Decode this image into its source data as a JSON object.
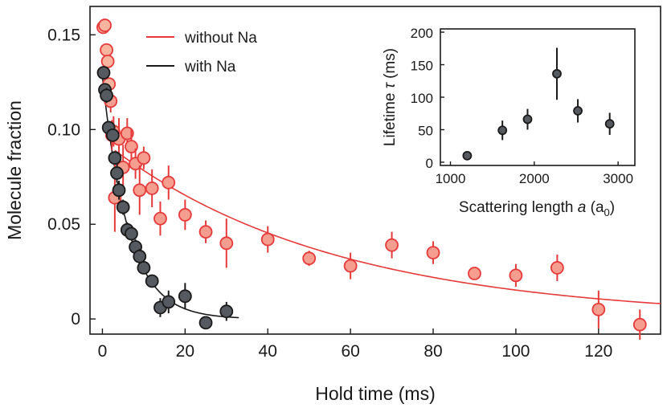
{
  "chart_data": [
    {
      "type": "scatter",
      "title": "",
      "xlabel": "Hold time (ms)",
      "ylabel": "Molecule fraction",
      "xlim": [
        -3,
        135
      ],
      "ylim": [
        -0.008,
        0.165
      ],
      "xticks": [
        0,
        20,
        40,
        60,
        80,
        100,
        120
      ],
      "xtick_labels": [
        "0",
        "20",
        "40",
        "60",
        "80",
        "100",
        "120"
      ],
      "yticks": [
        0,
        0.05,
        0.1,
        0.15
      ],
      "ytick_labels": [
        "0",
        "0.05",
        "0.10",
        "0.15"
      ],
      "legend": {
        "position": "top-left",
        "entries": [
          {
            "label": "without Na",
            "color": "#e63a3a"
          },
          {
            "label": "with Na",
            "color": "#1a1a1a"
          }
        ]
      },
      "series": [
        {
          "name": "without Na",
          "color": "#e63a3a",
          "fill": "#f59d8e",
          "early_fill": "#f7b5a0",
          "points": [
            {
              "x": 0.2,
              "y": 0.154,
              "err": 0
            },
            {
              "x": 0.6,
              "y": 0.155,
              "err": 0
            },
            {
              "x": 1.0,
              "y": 0.142,
              "err": 0
            },
            {
              "x": 1.3,
              "y": 0.136,
              "err": 0
            },
            {
              "x": 1.6,
              "y": 0.124,
              "err": 0
            },
            {
              "x": 2.0,
              "y": 0.115,
              "err": 0.006
            },
            {
              "x": 2.3,
              "y": 0.097,
              "err": 0.008
            },
            {
              "x": 2.7,
              "y": 0.099,
              "err": 0.008
            },
            {
              "x": 3.0,
              "y": 0.064,
              "err": 0.018
            },
            {
              "x": 4.0,
              "y": 0.095,
              "err": 0.011
            },
            {
              "x": 5.0,
              "y": 0.08,
              "err": 0.012
            },
            {
              "x": 6.0,
              "y": 0.098,
              "err": 0.008
            },
            {
              "x": 7.0,
              "y": 0.091,
              "err": 0.009
            },
            {
              "x": 8.0,
              "y": 0.082,
              "err": 0.008
            },
            {
              "x": 9.0,
              "y": 0.068,
              "err": 0.013
            },
            {
              "x": 10.0,
              "y": 0.085,
              "err": 0.006
            },
            {
              "x": 12.0,
              "y": 0.069,
              "err": 0.01
            },
            {
              "x": 14.0,
              "y": 0.053,
              "err": 0.009
            },
            {
              "x": 16.0,
              "y": 0.072,
              "err": 0.009
            },
            {
              "x": 20.0,
              "y": 0.055,
              "err": 0.008
            },
            {
              "x": 25.0,
              "y": 0.046,
              "err": 0.006
            },
            {
              "x": 30.0,
              "y": 0.04,
              "err": 0.013
            },
            {
              "x": 40.0,
              "y": 0.042,
              "err": 0.007
            },
            {
              "x": 50.0,
              "y": 0.032,
              "err": 0.004
            },
            {
              "x": 60.0,
              "y": 0.028,
              "err": 0.007
            },
            {
              "x": 70.0,
              "y": 0.039,
              "err": 0.007
            },
            {
              "x": 80.0,
              "y": 0.035,
              "err": 0.006
            },
            {
              "x": 90.0,
              "y": 0.024,
              "err": 0.003
            },
            {
              "x": 100.0,
              "y": 0.023,
              "err": 0.006
            },
            {
              "x": 110.0,
              "y": 0.027,
              "err": 0.007
            },
            {
              "x": 120.0,
              "y": 0.005,
              "err": 0.01
            },
            {
              "x": 130.0,
              "y": -0.003,
              "err": 0.008
            }
          ],
          "fit": {
            "model": "exponential",
            "amplitude": 0.094,
            "tau": 55,
            "offset": 0,
            "x_range": [
              3,
              135
            ]
          }
        },
        {
          "name": "with Na",
          "color": "#1a1a1a",
          "fill": "#555a60",
          "points": [
            {
              "x": 0.3,
              "y": 0.13,
              "err": 0
            },
            {
              "x": 0.6,
              "y": 0.121,
              "err": 0
            },
            {
              "x": 1.0,
              "y": 0.118,
              "err": 0.004
            },
            {
              "x": 1.5,
              "y": 0.101,
              "err": 0.003
            },
            {
              "x": 2.5,
              "y": 0.097,
              "err": 0
            },
            {
              "x": 3.0,
              "y": 0.085,
              "err": 0.003
            },
            {
              "x": 3.5,
              "y": 0.077,
              "err": 0.005
            },
            {
              "x": 4.0,
              "y": 0.068,
              "err": 0.005
            },
            {
              "x": 5.0,
              "y": 0.059,
              "err": 0.004
            },
            {
              "x": 6.0,
              "y": 0.047,
              "err": 0.004
            },
            {
              "x": 7.0,
              "y": 0.045,
              "err": 0.003
            },
            {
              "x": 8.0,
              "y": 0.038,
              "err": 0.004
            },
            {
              "x": 9.0,
              "y": 0.033,
              "err": 0.004
            },
            {
              "x": 10.0,
              "y": 0.027,
              "err": 0.003
            },
            {
              "x": 12.0,
              "y": 0.02,
              "err": 0.003
            },
            {
              "x": 14.0,
              "y": 0.006,
              "err": 0.005
            },
            {
              "x": 16.0,
              "y": 0.009,
              "err": 0.006
            },
            {
              "x": 20.0,
              "y": 0.012,
              "err": 0.007
            },
            {
              "x": 25.0,
              "y": -0.002,
              "err": 0
            },
            {
              "x": 30.0,
              "y": 0.004,
              "err": 0.005
            }
          ],
          "fit": {
            "model": "exponential",
            "amplitude": 0.128,
            "tau": 6.3,
            "offset": 0,
            "x_range": [
              0,
              33
            ]
          }
        }
      ]
    },
    {
      "type": "scatter",
      "title": "",
      "xlabel": "Scattering length a (a0)",
      "xlabel_parts": {
        "prefix": "Scattering length ",
        "symbol": "a",
        "open": " (a",
        "subscript": "0",
        "close": ")"
      },
      "ylabel": "Lifetime τ (ms)",
      "ylabel_parts": {
        "prefix": "Lifetime ",
        "symbol": "τ",
        "suffix": " (ms)"
      },
      "xlim": [
        880,
        3200
      ],
      "ylim": [
        -5,
        205
      ],
      "xticks": [
        1000,
        2000,
        3000
      ],
      "xtick_labels": [
        "1000",
        "2000",
        "3000"
      ],
      "yticks": [
        0,
        50,
        100,
        150,
        200
      ],
      "ytick_labels": [
        "0",
        "50",
        "100",
        "150",
        "200"
      ],
      "legend_position": "none",
      "series": [
        {
          "name": "lifetime",
          "color": "#1a1a1a",
          "fill": "#555a60",
          "points": [
            {
              "x": 1200,
              "y": 10,
              "err": 0
            },
            {
              "x": 1620,
              "y": 49,
              "err": 15
            },
            {
              "x": 1920,
              "y": 66,
              "err": 16
            },
            {
              "x": 2270,
              "y": 136,
              "err": 40
            },
            {
              "x": 2520,
              "y": 79,
              "err": 18
            },
            {
              "x": 2900,
              "y": 59,
              "err": 17
            }
          ]
        }
      ]
    }
  ]
}
